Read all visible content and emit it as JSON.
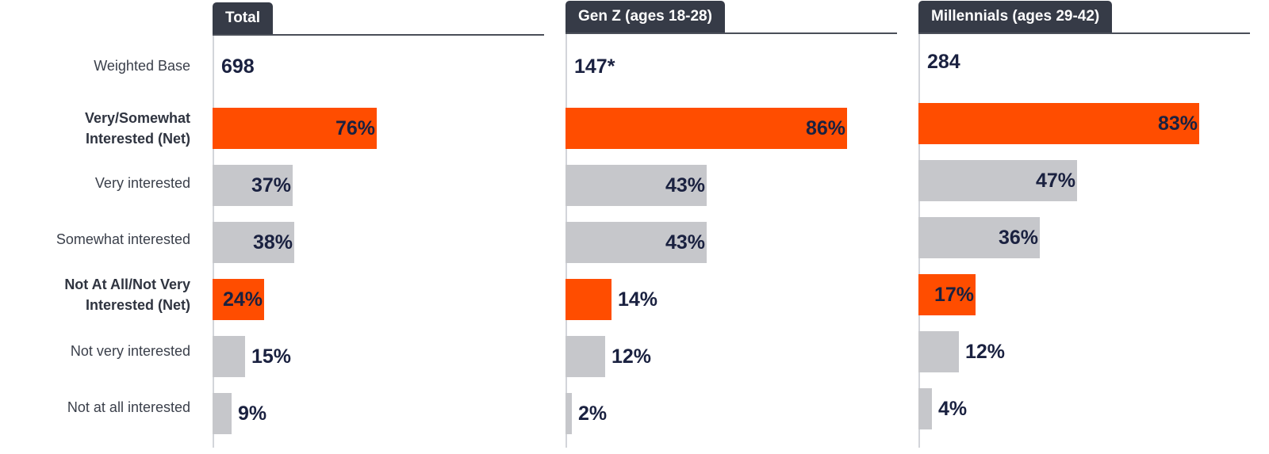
{
  "chart_data": {
    "type": "bar",
    "orientation": "horizontal",
    "row_labels": [
      {
        "text": "Weighted Base",
        "bold": false
      },
      {
        "text": "Very/Somewhat Interested (Net)",
        "bold": true
      },
      {
        "text": "Very interested",
        "bold": false
      },
      {
        "text": "Somewhat interested",
        "bold": false
      },
      {
        "text": "Not At All/Not Very Interested (Net)",
        "bold": true
      },
      {
        "text": "Not very interested",
        "bold": false
      },
      {
        "text": "Not at all interested",
        "bold": false
      }
    ],
    "categories": [
      "Very/Somewhat Interested (Net)",
      "Very interested",
      "Somewhat interested",
      "Not At All/Not Very Interested (Net)",
      "Not very interested",
      "Not at all interested"
    ],
    "net_flags": [
      true,
      false,
      false,
      true,
      false,
      false
    ],
    "series": [
      {
        "name": "Total",
        "base": "698",
        "values": [
          76,
          37,
          38,
          24,
          15,
          9
        ]
      },
      {
        "name": "Gen Z (ages 18-28)",
        "base": "147*",
        "values": [
          86,
          43,
          43,
          14,
          12,
          2
        ]
      },
      {
        "name": "Millennials (ages 29-42)",
        "base": "284",
        "values": [
          83,
          47,
          36,
          17,
          12,
          4
        ]
      }
    ],
    "value_suffix": "%",
    "xlim": [
      0,
      100
    ],
    "colors": {
      "net": "#ff4d00",
      "sub": "#c6c7cb",
      "tab": "#363b47",
      "text": "#1a2140"
    }
  }
}
